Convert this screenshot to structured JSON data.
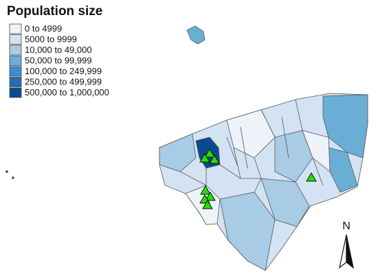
{
  "legend": {
    "title": "Population size",
    "items": [
      {
        "label": "0 to 4999",
        "color": "#eef3fa"
      },
      {
        "label": "5000 to 9999",
        "color": "#d3e3f3"
      },
      {
        "label": "10,000 to 49,000",
        "color": "#a8cbe6"
      },
      {
        "label": "50,000 to 99,999",
        "color": "#6aaed6"
      },
      {
        "label": "100,000 to 249,999",
        "color": "#3a8fcb"
      },
      {
        "label": "250,000 to 499,999",
        "color": "#1f6fb5"
      },
      {
        "label": "500,000 to 1,000,000",
        "color": "#0b4a91"
      }
    ]
  },
  "north_label": "N"
}
